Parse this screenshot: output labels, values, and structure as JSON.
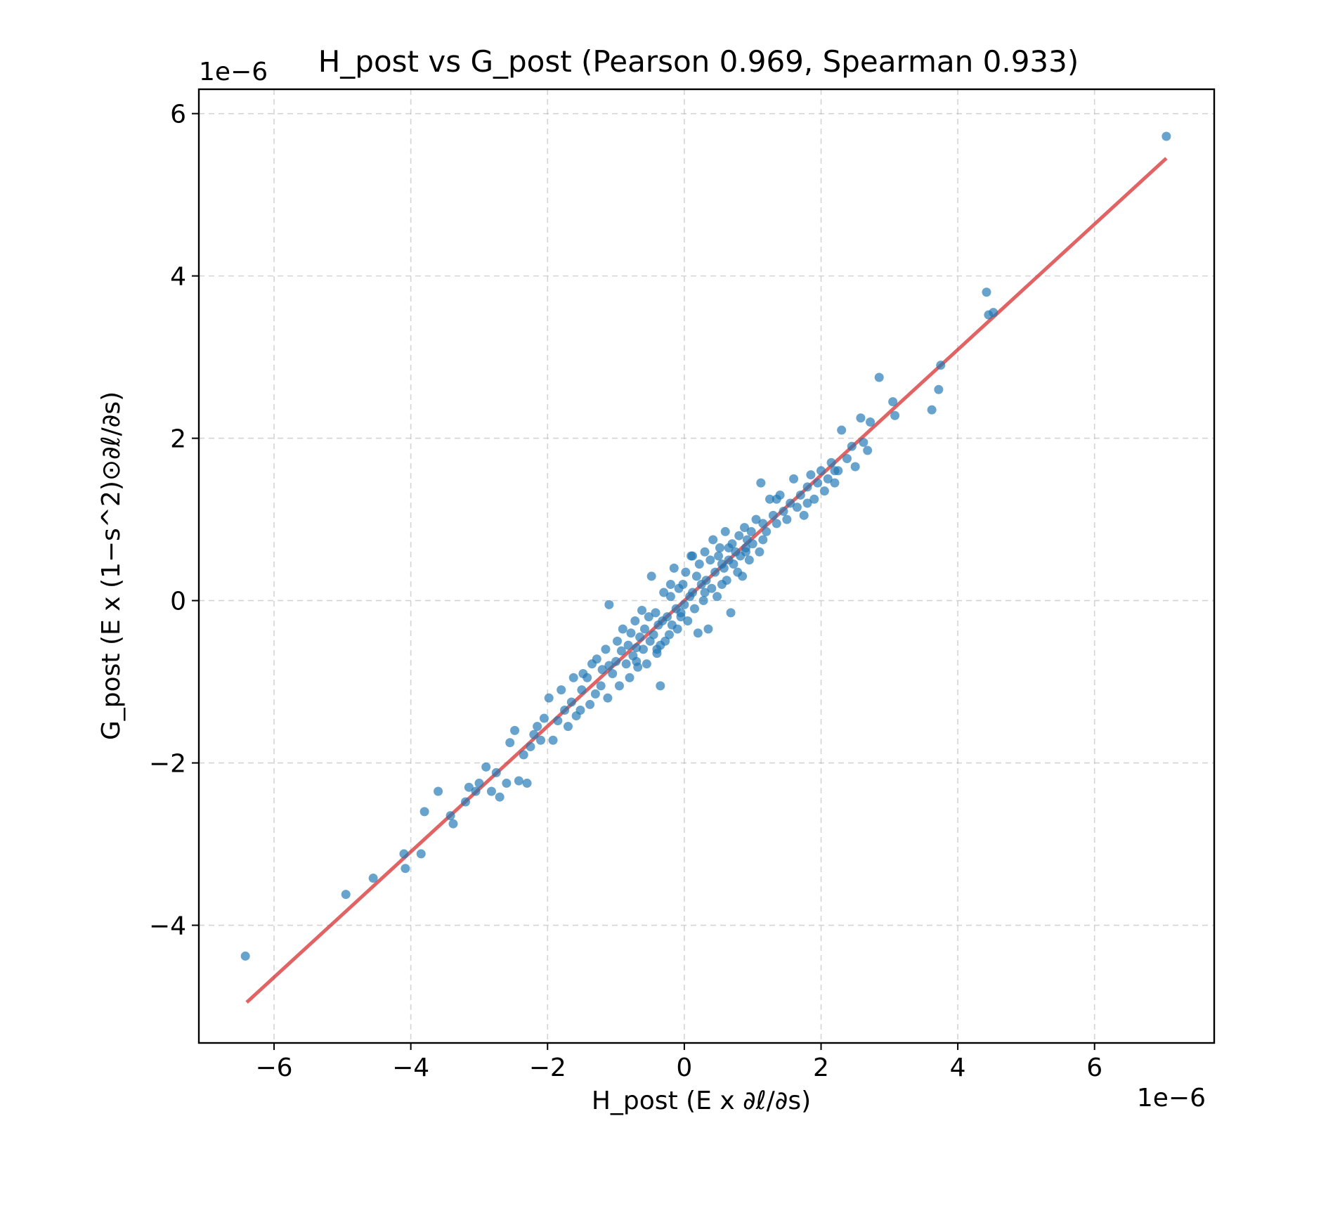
{
  "chart_data": {
    "type": "scatter",
    "title": "H_post vs G_post (Pearson 0.969, Spearman 0.933)",
    "xlabel": "H_post (E x ∂ℓ/∂s)",
    "ylabel": "G_post (E x (1−s^2)⊙∂ℓ/∂s)",
    "x_offset_label": "1e−6",
    "y_offset_label": "1e−6",
    "xlim": [
      -7.1,
      7.75
    ],
    "ylim": [
      -5.45,
      6.3
    ],
    "xticks": [
      -6,
      -4,
      -2,
      0,
      2,
      4,
      6
    ],
    "yticks": [
      -4,
      -2,
      0,
      2,
      4,
      6
    ],
    "xtick_labels": [
      "−6",
      "−4",
      "−2",
      "0",
      "2",
      "4",
      "6"
    ],
    "ytick_labels": [
      "−4",
      "−2",
      "0",
      "2",
      "4",
      "6"
    ],
    "grid": true,
    "colors": {
      "points": "#1f77b4",
      "fit_line": "#d62728"
    },
    "fit_line": {
      "x": [
        -6.4,
        7.05
      ],
      "y": [
        -4.95,
        5.45
      ]
    },
    "series": [
      {
        "x": [
          -6.42,
          -4.95,
          -4.55,
          -4.1,
          -4.08,
          -3.85,
          -3.8,
          -3.6,
          -3.42,
          -3.38,
          -3.2,
          -3.15,
          -3.05,
          -3.0,
          -2.9,
          -2.82,
          -2.75,
          -2.7,
          -2.6,
          -2.55,
          -2.48,
          -2.42,
          -2.35,
          -2.3,
          -2.25,
          -2.2,
          -2.15,
          -2.1,
          -2.05,
          -1.98,
          -1.92,
          -1.85,
          -1.8,
          -1.75,
          -1.7,
          -1.65,
          -1.62,
          -1.58,
          -1.52,
          -1.48,
          -1.42,
          -1.38,
          -1.35,
          -1.3,
          -1.28,
          -1.22,
          -1.2,
          -1.15,
          -1.12,
          -1.1,
          -1.05,
          -1.0,
          -0.98,
          -0.95,
          -0.92,
          -0.9,
          -0.85,
          -0.82,
          -0.8,
          -0.78,
          -0.75,
          -0.72,
          -0.7,
          -0.68,
          -0.65,
          -0.62,
          -0.6,
          -0.58,
          -0.55,
          -0.52,
          -0.5,
          -0.48,
          -0.45,
          -0.42,
          -0.4,
          -0.38,
          -0.35,
          -0.32,
          -0.3,
          -0.28,
          -0.25,
          -0.22,
          -0.2,
          -0.18,
          -0.15,
          -0.12,
          -0.1,
          -0.08,
          -0.05,
          -0.02,
          0.0,
          0.02,
          0.05,
          0.08,
          0.1,
          0.12,
          0.15,
          0.18,
          0.2,
          0.22,
          0.25,
          0.28,
          0.3,
          0.32,
          0.35,
          0.38,
          0.4,
          0.42,
          0.45,
          0.48,
          0.5,
          0.52,
          0.55,
          0.58,
          0.6,
          0.62,
          0.65,
          0.68,
          0.7,
          0.72,
          0.75,
          0.78,
          0.8,
          0.82,
          0.85,
          0.88,
          0.9,
          0.92,
          0.95,
          0.98,
          1.0,
          1.05,
          1.1,
          1.12,
          1.15,
          1.2,
          1.25,
          1.3,
          1.35,
          1.4,
          1.45,
          1.5,
          1.55,
          1.6,
          1.65,
          1.7,
          1.75,
          1.8,
          1.85,
          1.9,
          1.95,
          2.0,
          2.05,
          2.1,
          2.15,
          2.2,
          2.25,
          2.3,
          2.38,
          2.45,
          2.5,
          2.58,
          2.62,
          2.68,
          2.72,
          2.85,
          3.05,
          3.08,
          3.62,
          3.72,
          3.75,
          4.42,
          4.45,
          4.52,
          7.05,
          -1.1,
          -0.4,
          -0.05,
          0.3,
          0.55,
          1.15,
          0.12,
          -0.35,
          1.8,
          2.2,
          -0.2,
          0.65,
          -0.7,
          0.9,
          -1.5,
          1.35
        ],
        "y": [
          -4.38,
          -3.62,
          -3.42,
          -3.12,
          -3.3,
          -3.12,
          -2.6,
          -2.35,
          -2.65,
          -2.75,
          -2.48,
          -2.3,
          -2.35,
          -2.25,
          -2.05,
          -2.35,
          -2.12,
          -2.42,
          -2.25,
          -1.75,
          -1.6,
          -2.22,
          -1.9,
          -2.25,
          -1.8,
          -1.65,
          -1.55,
          -1.72,
          -1.45,
          -1.2,
          -1.72,
          -1.48,
          -1.1,
          -1.35,
          -1.55,
          -1.25,
          -0.95,
          -1.42,
          -1.35,
          -0.9,
          -0.95,
          -1.28,
          -0.78,
          -1.15,
          -0.72,
          -1.05,
          -0.85,
          -0.6,
          -1.2,
          -0.05,
          -0.9,
          -0.75,
          -0.5,
          -1.05,
          -0.62,
          -0.35,
          -0.78,
          -0.55,
          -0.95,
          -0.4,
          -0.68,
          -0.25,
          -0.58,
          -0.82,
          -0.45,
          -0.12,
          -0.6,
          -0.35,
          -0.78,
          -0.2,
          -0.5,
          0.3,
          -0.42,
          -0.15,
          -0.65,
          -0.3,
          -1.05,
          -0.25,
          0.1,
          -0.5,
          -0.2,
          -0.42,
          0.05,
          -0.3,
          0.4,
          -0.1,
          -0.35,
          0.15,
          -0.2,
          0.2,
          -0.05,
          0.35,
          -0.25,
          0.05,
          0.55,
          0.1,
          -0.1,
          0.3,
          -0.4,
          0.45,
          0.2,
          0.0,
          0.6,
          0.25,
          -0.35,
          0.5,
          0.15,
          0.75,
          0.35,
          0.05,
          0.55,
          0.65,
          0.2,
          0.4,
          0.85,
          0.25,
          0.5,
          -0.15,
          0.7,
          0.45,
          0.6,
          0.35,
          0.8,
          0.55,
          0.3,
          0.9,
          0.65,
          0.75,
          0.5,
          0.85,
          0.7,
          1.0,
          0.6,
          1.45,
          0.95,
          0.85,
          1.25,
          1.05,
          0.95,
          1.3,
          1.1,
          1.0,
          1.2,
          1.5,
          1.15,
          1.3,
          1.05,
          1.4,
          1.55,
          1.25,
          1.45,
          1.6,
          1.35,
          1.5,
          1.7,
          1.45,
          1.6,
          2.1,
          1.75,
          1.9,
          1.65,
          2.25,
          1.95,
          1.85,
          2.2,
          2.75,
          2.45,
          2.28,
          2.35,
          2.6,
          2.9,
          3.8,
          3.52,
          3.55,
          5.72,
          -0.8,
          -0.6,
          -0.15,
          0.1,
          0.45,
          0.75,
          0.55,
          -0.55,
          1.2,
          1.6,
          0.2,
          0.65,
          -0.75,
          0.6,
          -1.1,
          1.25
        ]
      }
    ]
  }
}
